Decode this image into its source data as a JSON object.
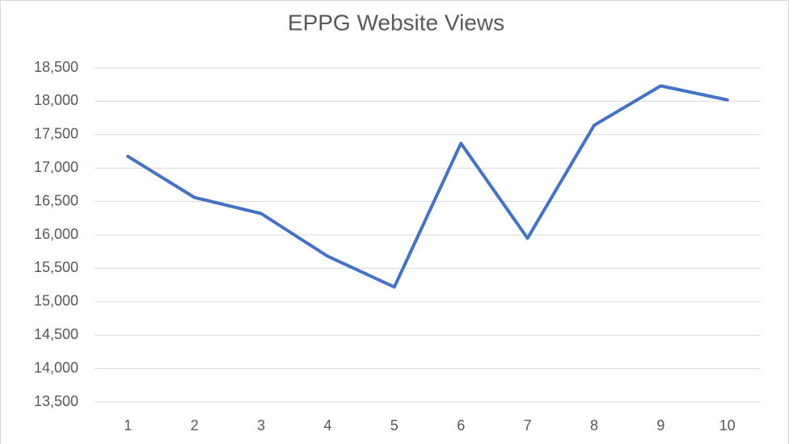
{
  "chart_data": {
    "type": "line",
    "title": "EPPG Website Views",
    "categories": [
      "1",
      "2",
      "3",
      "4",
      "5",
      "6",
      "7",
      "8",
      "9",
      "10"
    ],
    "series": [
      {
        "name": "Views",
        "color": "#4472c4",
        "values": [
          17175,
          16560,
          16320,
          15680,
          15220,
          17370,
          15950,
          17640,
          18230,
          18020
        ]
      }
    ],
    "ylim": [
      13500,
      18500
    ],
    "yticks": [
      {
        "value": 13500,
        "label": "13,500"
      },
      {
        "value": 14000,
        "label": "14,000"
      },
      {
        "value": 14500,
        "label": "14,500"
      },
      {
        "value": 15000,
        "label": "15,000"
      },
      {
        "value": 15500,
        "label": "15,500"
      },
      {
        "value": 16000,
        "label": "16,000"
      },
      {
        "value": 16500,
        "label": "16,500"
      },
      {
        "value": 17000,
        "label": "17,000"
      },
      {
        "value": 17500,
        "label": "17,500"
      },
      {
        "value": 18000,
        "label": "18,000"
      },
      {
        "value": 18500,
        "label": "18,500"
      }
    ],
    "grid": true,
    "legend": false
  }
}
